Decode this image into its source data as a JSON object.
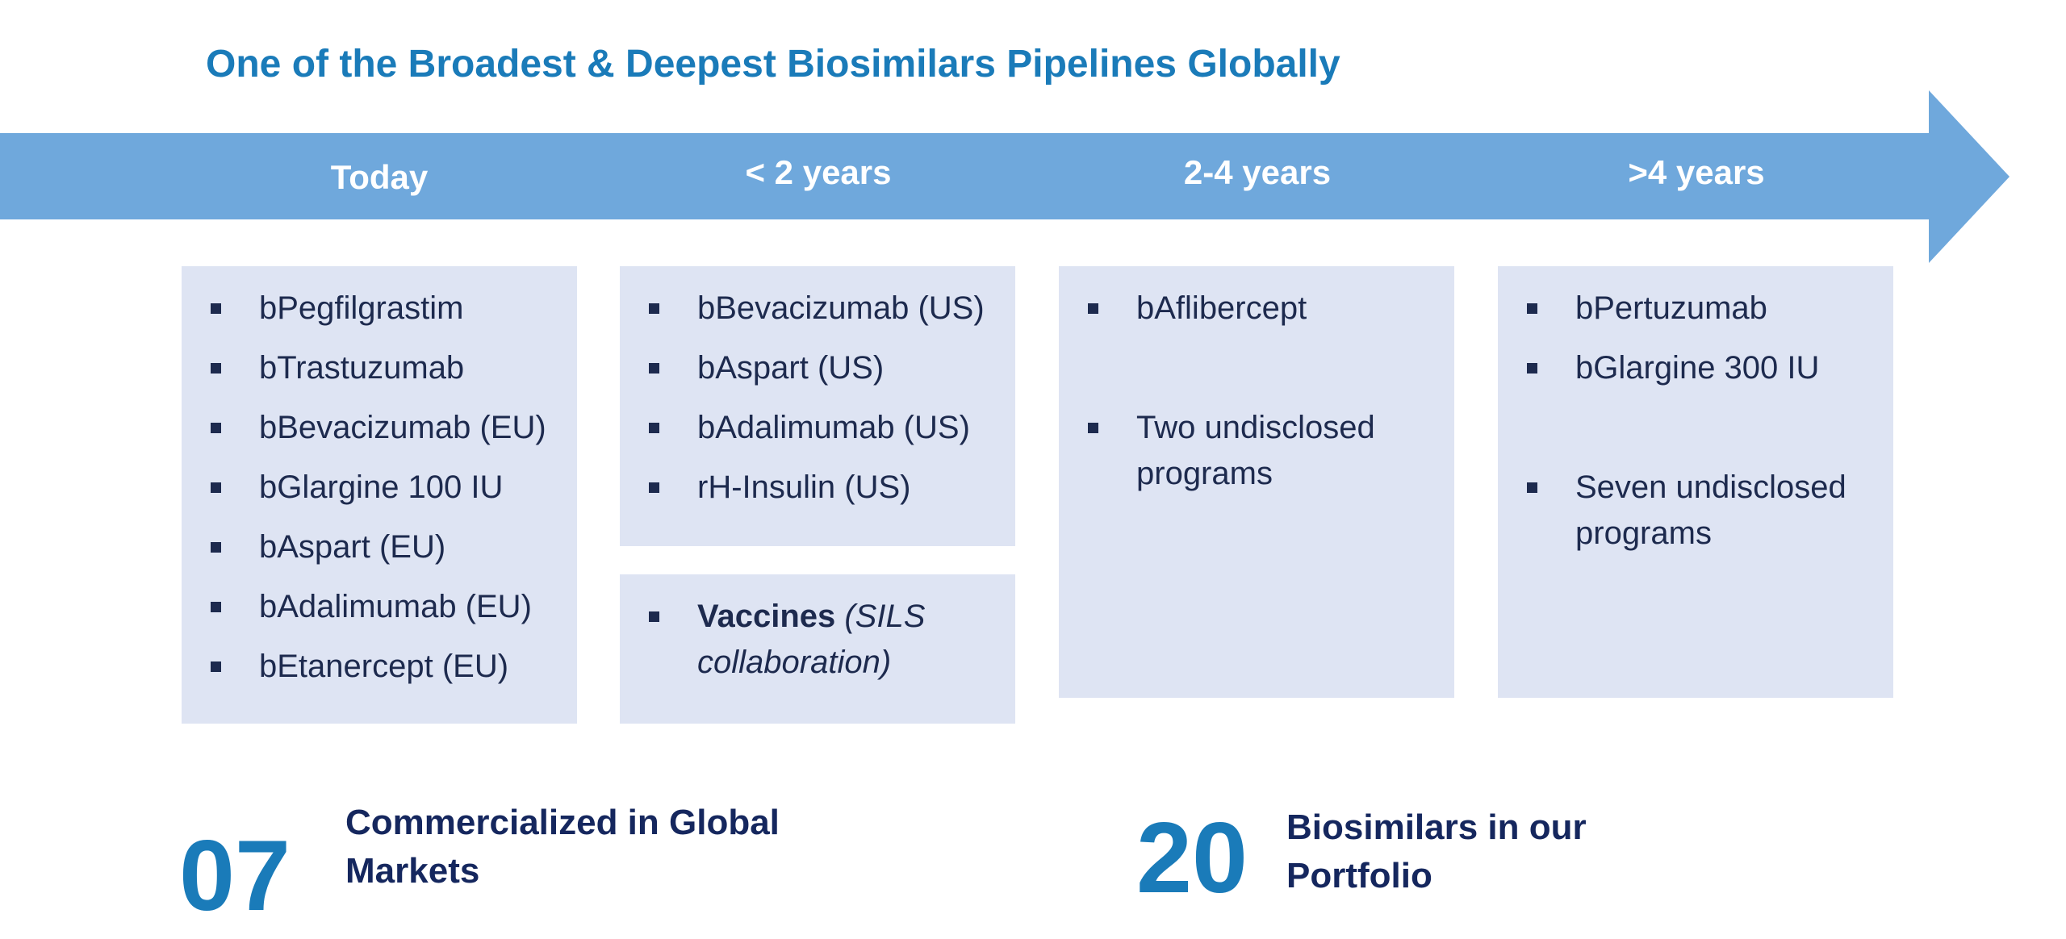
{
  "title": "One of the Broadest & Deepest Biosimilars Pipelines Globally",
  "colors": {
    "title": "#1a7bb9",
    "arrow": "#6fa8dc",
    "box": "#dee4f3",
    "text": "#1d2a4e",
    "stat": "#15275e"
  },
  "stages": [
    {
      "label": "Today"
    },
    {
      "label": "< 2 years"
    },
    {
      "label": "2-4 years"
    },
    {
      "label": ">4 years"
    }
  ],
  "boxes": {
    "today": [
      "bPegfilgrastim",
      "bTrastuzumab",
      "bBevacizumab (EU)",
      "bGlargine 100 IU",
      "bAspart (EU)",
      "bAdalimumab (EU)",
      "bEtanercept (EU)"
    ],
    "under2": [
      "bBevacizumab (US)",
      "bAspart (US)",
      "bAdalimumab (US)",
      "rH-Insulin (US)"
    ],
    "vaccines": {
      "bold": "Vaccines",
      "italic": " (SILS collaboration)"
    },
    "two_four": [
      "bAflibercept",
      "Two undisclosed programs"
    ],
    "over4": [
      "bPertuzumab",
      "bGlargine 300 IU",
      "Seven undisclosed programs"
    ]
  },
  "stats": [
    {
      "number": "07",
      "label": "Commercialized in Global Markets"
    },
    {
      "number": "20",
      "label": "Biosimilars in our Portfolio"
    }
  ]
}
